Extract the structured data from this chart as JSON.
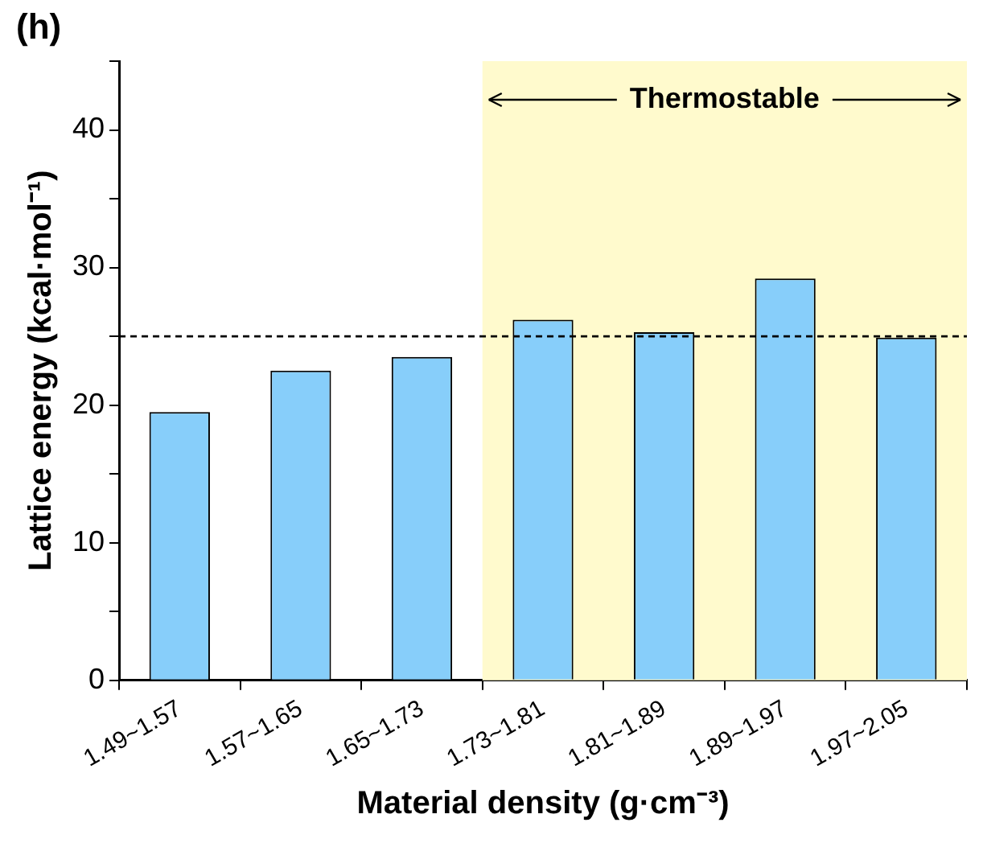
{
  "chart_data": {
    "type": "bar",
    "title": "(h)",
    "xlabel": "Material density (g·cm⁻³)",
    "ylabel": "Lattice energy (kcal·mol⁻¹)",
    "categories": [
      "1.49~1.57",
      "1.57~1.65",
      "1.65~1.73",
      "1.73~1.81",
      "1.81~1.89",
      "1.89~1.97",
      "1.97~2.05"
    ],
    "values": [
      19.5,
      22.5,
      23.5,
      26.2,
      25.3,
      29.2,
      24.9
    ],
    "color": "#87cefa",
    "ylim": [
      0,
      45
    ],
    "yticks": [
      0,
      {
        "value": 5,
        "label": null
      },
      10,
      {
        "value": 15,
        "label": null
      },
      20,
      {
        "value": 25,
        "label": null
      },
      30,
      {
        "value": 35,
        "label": null
      },
      40,
      {
        "value": 45,
        "label": null
      }
    ],
    "ref_lines": [
      {
        "axis": "y",
        "value": 25,
        "color": "#000000",
        "line_style": "dashed"
      }
    ],
    "bands": [
      {
        "axis": "x",
        "from": "1.73~1.81",
        "to": "1.97~2.05",
        "label": "Thermostable",
        "color": "#fffacd"
      }
    ],
    "grid": false,
    "legend": false
  }
}
